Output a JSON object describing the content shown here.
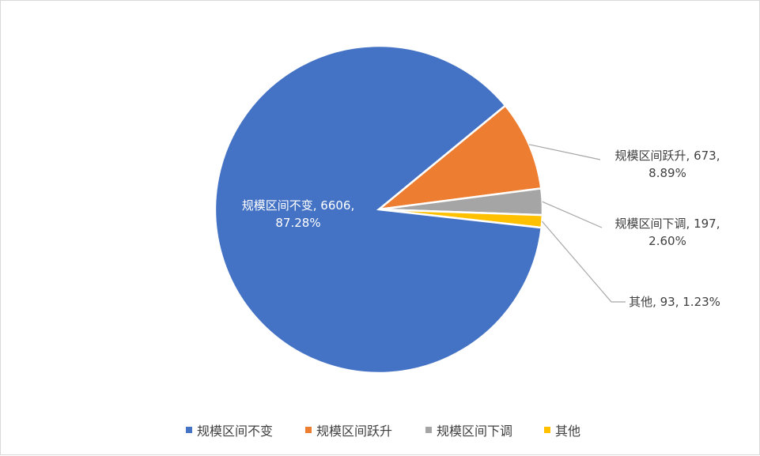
{
  "chart_data": {
    "type": "pie",
    "title": "",
    "slices": [
      {
        "name": "规模区间不变",
        "value": 6606,
        "percent": "87.28%",
        "color": "#4472C4"
      },
      {
        "name": "规模区间跃升",
        "value": 673,
        "percent": "8.89%",
        "color": "#ED7D31"
      },
      {
        "name": "规模区间下调",
        "value": 197,
        "percent": "2.60%",
        "color": "#A5A5A5"
      },
      {
        "name": "其他",
        "value": 93,
        "percent": "1.23%",
        "color": "#FFC000"
      }
    ],
    "legend_position": "bottom",
    "data_labels": true
  }
}
